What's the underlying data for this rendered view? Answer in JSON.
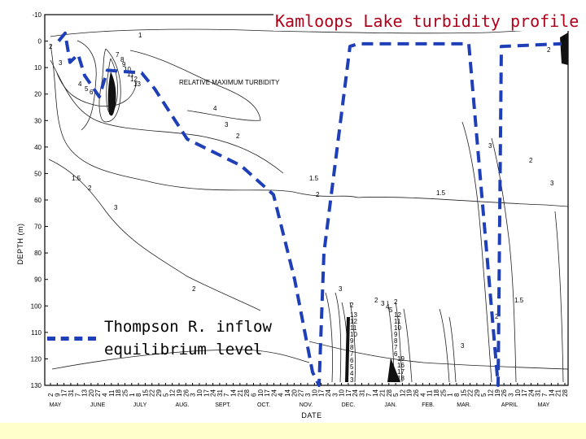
{
  "slide": {
    "title": "Kamloops Lake turbidity profile",
    "legend_line1": "Thompson R. inflow",
    "legend_line2": "equilibrium level",
    "accent_color": "#1f3fb8",
    "title_color": "#b0001a",
    "footer_color": "#ffffcc"
  },
  "chart_data": {
    "type": "contour",
    "xlabel": "DATE",
    "ylabel": "DEPTH (m)",
    "annotation": "RELATIVE MAXIMUM TURBIDITY",
    "y_ticks": [
      "-10",
      "0",
      "10",
      "20",
      "30",
      "40",
      "50",
      "60",
      "70",
      "80",
      "90",
      "100",
      "110",
      "120",
      "130"
    ],
    "ylim": [
      130,
      -10
    ],
    "x_ticks": [
      "2",
      "9",
      "17",
      "31",
      "7",
      "13",
      "20",
      "27",
      "4",
      "11",
      "18",
      "25",
      "1",
      "8",
      "15",
      "22",
      "29",
      "5",
      "12",
      "19",
      "26",
      "3",
      "10",
      "17",
      "24",
      "31",
      "7",
      "14",
      "21",
      "28",
      "6",
      "10",
      "17",
      "24",
      "4",
      "14",
      "20",
      "27",
      "3",
      "10",
      "17",
      "24",
      "3",
      "10",
      "17",
      "24",
      "31",
      "7",
      "14",
      "21",
      "28",
      "5",
      "12",
      "19",
      "26",
      "4",
      "11",
      "18",
      "25",
      "1",
      "8",
      "15",
      "22",
      "29",
      "5",
      "12",
      "19",
      "26",
      "3",
      "10",
      "17",
      "24",
      "31",
      "7",
      "14",
      "21",
      "28"
    ],
    "months": [
      "MAY",
      "JUNE",
      "JULY",
      "AUG.",
      "SEPT.",
      "OCT.",
      "NOV.",
      "DEC.",
      "JAN.",
      "FEB.",
      "MAR.",
      "APRIL",
      "MAY"
    ],
    "contour_labels": [
      "1",
      "2",
      "3",
      "4",
      "5",
      "6",
      "7",
      "8",
      "9",
      "10",
      "11",
      "12",
      "13",
      "1.5",
      "2",
      "1.5",
      "2",
      "3",
      "1.5",
      "3",
      "2",
      "3",
      "4",
      "2",
      "3",
      "2",
      "1.5",
      "2",
      "3",
      "13",
      "12",
      "11",
      "10",
      "9",
      "8",
      "7",
      "6",
      "5",
      "4",
      "3",
      "2",
      "16",
      "17",
      "18",
      "19",
      "12",
      "11",
      "10",
      "9",
      "8",
      "7",
      "6",
      "5",
      "4",
      "3",
      "2",
      "3",
      "2",
      "3",
      "2"
    ],
    "inflow_level": [
      {
        "date": "May 2",
        "depth": 0
      },
      {
        "date": "May 9",
        "depth": -3
      },
      {
        "date": "May 17",
        "depth": 8
      },
      {
        "date": "May 31",
        "depth": 5
      },
      {
        "date": "June 7",
        "depth": 13
      },
      {
        "date": "June 20",
        "depth": 21
      },
      {
        "date": "July 4",
        "depth": 11
      },
      {
        "date": "July 25",
        "depth": 12
      },
      {
        "date": "Aug. 8",
        "depth": 18
      },
      {
        "date": "Aug. 22",
        "depth": 37
      },
      {
        "date": "Sept. 19",
        "depth": 47
      },
      {
        "date": "Sept. 26",
        "depth": 58
      },
      {
        "date": "Oct. 3",
        "depth": 90
      },
      {
        "date": "Oct. 17",
        "depth": 125
      },
      {
        "date": "Oct. 31",
        "depth": 130
      },
      {
        "date": "Nov. 7",
        "depth": 80
      },
      {
        "date": "Nov. 14",
        "depth": 2
      },
      {
        "date": "Dec. 10",
        "depth": 1
      },
      {
        "date": "Jan. 27",
        "depth": 1
      },
      {
        "date": "Feb. 28",
        "depth": 130
      },
      {
        "date": "Mar. 5",
        "depth": 2
      },
      {
        "date": "Mar. 26",
        "depth": 1
      }
    ]
  }
}
